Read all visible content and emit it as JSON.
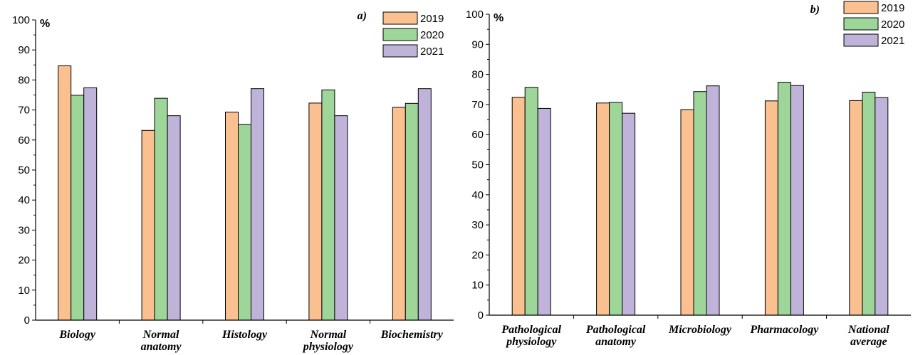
{
  "chart_data": [
    {
      "type": "bar",
      "panel_label": "a)",
      "ylabel": "%",
      "ylim": [
        0,
        100
      ],
      "yticks": [
        0,
        10,
        20,
        30,
        40,
        50,
        60,
        70,
        80,
        90,
        100
      ],
      "categories": [
        [
          "Biology"
        ],
        [
          "Normal",
          "anatomy"
        ],
        [
          "Histology"
        ],
        [
          "Normal",
          "physiology"
        ],
        [
          "Biochemistry"
        ]
      ],
      "series": [
        {
          "name": "2019",
          "color": "#FAC090",
          "values": [
            84.7,
            63.2,
            69.3,
            72.3,
            70.9
          ]
        },
        {
          "name": "2020",
          "color": "#9ED69A",
          "values": [
            74.9,
            73.9,
            65.2,
            76.7,
            72.2
          ]
        },
        {
          "name": "2021",
          "color": "#BFB3DA",
          "values": [
            77.4,
            68.1,
            77.1,
            68.1,
            77.1
          ]
        }
      ],
      "legend": "top-right"
    },
    {
      "type": "bar",
      "panel_label": "b)",
      "ylabel": "%",
      "ylim": [
        0,
        100
      ],
      "yticks": [
        0,
        10,
        20,
        30,
        40,
        50,
        60,
        70,
        80,
        90,
        100
      ],
      "categories": [
        [
          "Pathological",
          "physiology"
        ],
        [
          "Pathological",
          "anatomy"
        ],
        [
          "Microbiology"
        ],
        [
          "Pharmacology"
        ],
        [
          "National",
          "average"
        ]
      ],
      "series": [
        {
          "name": "2019",
          "color": "#FAC090",
          "values": [
            72.4,
            70.5,
            68.3,
            71.2,
            71.3
          ]
        },
        {
          "name": "2020",
          "color": "#9ED69A",
          "values": [
            75.7,
            70.7,
            74.3,
            77.4,
            74.1
          ]
        },
        {
          "name": "2021",
          "color": "#BFB3DA",
          "values": [
            68.7,
            67.1,
            76.2,
            76.3,
            72.3
          ]
        }
      ],
      "legend": "top-right"
    }
  ]
}
